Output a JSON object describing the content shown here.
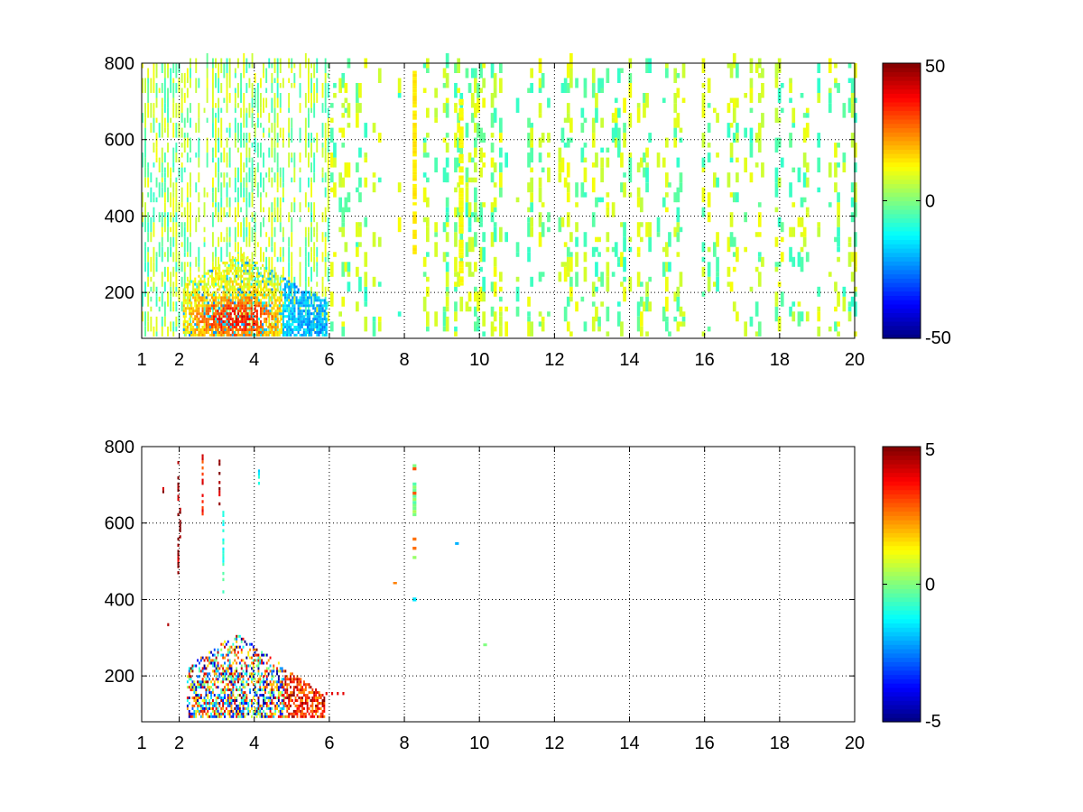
{
  "chart_data": [
    {
      "type": "heatmap",
      "xlim": [
        1,
        20
      ],
      "ylim": [
        80,
        800
      ],
      "x_ticks": [
        1,
        2,
        4,
        6,
        8,
        10,
        12,
        14,
        16,
        18,
        20
      ],
      "x_tick_labels": [
        "1",
        "2",
        "4",
        "6",
        "8",
        "10",
        "12",
        "14",
        "16",
        "18",
        "20"
      ],
      "y_ticks": [
        200,
        400,
        600,
        800
      ],
      "y_tick_labels": [
        "200",
        "400",
        "600",
        "800"
      ],
      "grid": true,
      "colormap": "jet",
      "clim": [
        -50,
        50
      ],
      "colorbar_ticks": [
        50,
        0,
        -50
      ],
      "colorbar_tick_labels": [
        "50",
        "0",
        "-50"
      ],
      "colorbar_location": "right",
      "regions": [
        {
          "description_key": "dense-low-band",
          "x_range": [
            2,
            6
          ],
          "y_range": [
            90,
            300
          ],
          "value_range": [
            -35,
            40
          ]
        },
        {
          "description_key": "sparse-field",
          "x_range": [
            1,
            20
          ],
          "y_range": [
            80,
            800
          ],
          "value_range": [
            -10,
            12
          ]
        },
        {
          "description_key": "yellow-stripe",
          "x_range": [
            8.2,
            8.35
          ],
          "y_range": [
            300,
            780
          ],
          "value_range": [
            12,
            16
          ]
        },
        {
          "description_key": "yellow-stripe",
          "x_range": [
            9.4,
            9.6
          ],
          "y_range": [
            200,
            700
          ],
          "value_range": [
            10,
            15
          ]
        }
      ]
    },
    {
      "type": "heatmap",
      "xlim": [
        1,
        20
      ],
      "ylim": [
        80,
        800
      ],
      "x_ticks": [
        1,
        2,
        4,
        6,
        8,
        10,
        12,
        14,
        16,
        18,
        20
      ],
      "x_tick_labels": [
        "1",
        "2",
        "4",
        "6",
        "8",
        "10",
        "12",
        "14",
        "16",
        "18",
        "20"
      ],
      "y_ticks": [
        200,
        400,
        600,
        800
      ],
      "y_tick_labels": [
        "200",
        "400",
        "600",
        "800"
      ],
      "grid": true,
      "colormap": "jet",
      "clim": [
        -5,
        5
      ],
      "colorbar_ticks": [
        5,
        0,
        -5
      ],
      "colorbar_tick_labels": [
        "5",
        "0",
        "-5"
      ],
      "colorbar_location": "right",
      "regions": [
        {
          "description_key": "dense-low-band",
          "x_range": [
            2.2,
            5.8
          ],
          "y_range": [
            90,
            310
          ],
          "value_range": [
            -5,
            5
          ]
        },
        {
          "description_key": "sparse-columns",
          "x_range": [
            1.5,
            4.2
          ],
          "y_range": [
            80,
            780
          ],
          "value_range": [
            -5,
            5
          ]
        },
        {
          "description_key": "stripe",
          "x_range": [
            8.2,
            8.35
          ],
          "y_range": [
            400,
            750
          ],
          "value_range": [
            -1,
            3
          ]
        }
      ]
    }
  ]
}
